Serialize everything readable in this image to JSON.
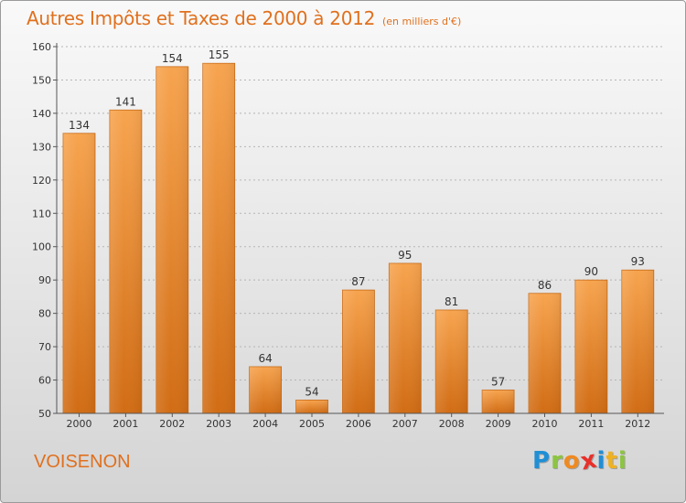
{
  "header": {
    "title": "Autres Impôts et Taxes de 2000 à 2012",
    "subtitle": "(en milliers d'€)"
  },
  "footer": {
    "commune": "VOISENON",
    "logo_letters": [
      "P",
      "r",
      "o",
      "x",
      "i",
      "t",
      "i"
    ]
  },
  "colors": {
    "accent": "#e0701e",
    "bar_light": "#f7a44f",
    "bar_dark": "#d16c14",
    "logo": [
      "#1f8fd6",
      "#8cc540",
      "#f08a1f",
      "#e8302a",
      "#1f8fd6",
      "#f0b21f",
      "#8cc540"
    ]
  },
  "chart_data": {
    "type": "bar",
    "title": "Autres Impôts et Taxes de 2000 à 2012",
    "subtitle": "(en milliers d'€)",
    "categories": [
      "2000",
      "2001",
      "2002",
      "2003",
      "2004",
      "2005",
      "2006",
      "2007",
      "2008",
      "2009",
      "2010",
      "2011",
      "2012"
    ],
    "values": [
      134,
      141,
      154,
      155,
      64,
      54,
      87,
      95,
      81,
      57,
      86,
      90,
      93
    ],
    "ylim": [
      50,
      160
    ],
    "yticks": [
      50,
      60,
      70,
      80,
      90,
      100,
      110,
      120,
      130,
      140,
      150,
      160
    ],
    "grid": true,
    "legend": "none"
  }
}
